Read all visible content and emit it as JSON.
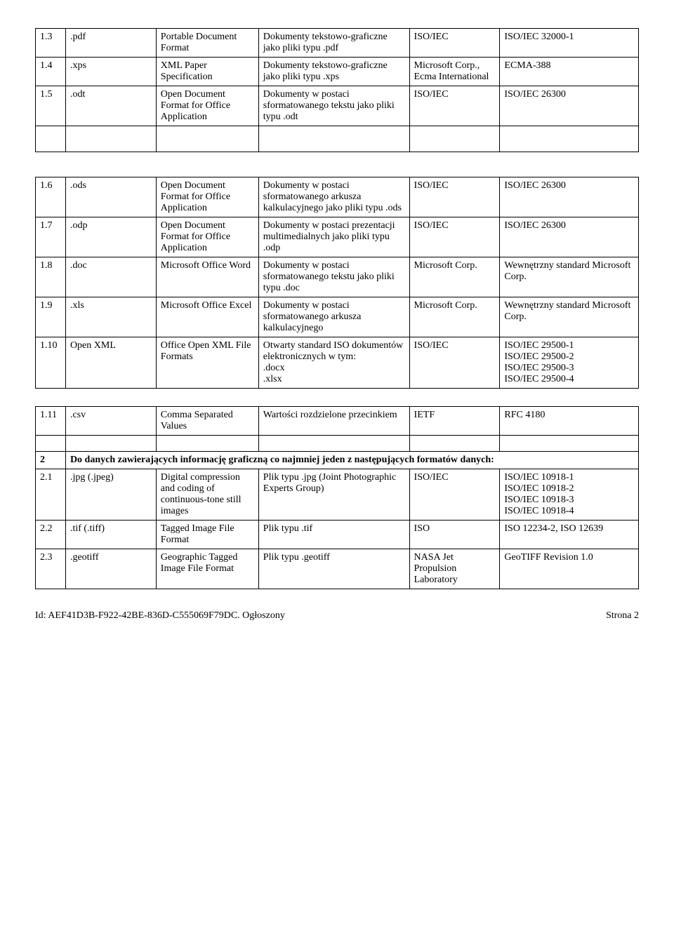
{
  "table1": {
    "rows": [
      {
        "n": "1.3",
        "ext": ".pdf",
        "name": "Portable Document Format",
        "desc": "Dokumenty tekstowo-graficzne jako pliki typu .pdf",
        "org": "ISO/IEC",
        "std": "ISO/IEC 32000-1"
      },
      {
        "n": "1.4",
        "ext": ".xps",
        "name": "XML Paper Specification",
        "desc": "Dokumenty tekstowo-graficzne jako pliki typu .xps",
        "org": "Microsoft Corp., Ecma International",
        "std": "ECMA-388"
      },
      {
        "n": "1.5",
        "ext": ".odt",
        "name": "Open Document Format for Office Application",
        "desc": "Dokumenty w postaci sformatowanego tekstu jako pliki typu .odt",
        "org": "ISO/IEC",
        "std": "ISO/IEC 26300"
      }
    ]
  },
  "table2": {
    "rows": [
      {
        "n": "1.6",
        "ext": ".ods",
        "name": "Open Document Format for Office Application",
        "desc": "Dokumenty w postaci sformatowanego arkusza kalkulacyjnego jako pliki typu .ods",
        "org": "ISO/IEC",
        "std": "ISO/IEC 26300"
      },
      {
        "n": "1.7",
        "ext": ".odp",
        "name": "Open Document Format for Office Application",
        "desc": "Dokumenty w postaci prezentacji multimedialnych jako pliki typu .odp",
        "org": "ISO/IEC",
        "std": "ISO/IEC 26300"
      },
      {
        "n": "1.8",
        "ext": ".doc",
        "name": "Microsoft Office Word",
        "desc": "Dokumenty w postaci sformatowanego tekstu jako pliki typu .doc",
        "org": "Microsoft Corp.",
        "std": "Wewnętrzny standard Microsoft Corp."
      },
      {
        "n": "1.9",
        "ext": ".xls",
        "name": "Microsoft Office Excel",
        "desc": "Dokumenty w postaci sformatowanego arkusza kalkulacyjnego",
        "org": "Microsoft Corp.",
        "std": "Wewnętrzny standard Microsoft Corp."
      },
      {
        "n": "1.10",
        "ext": "Open XML",
        "name": "Office Open XML File Formats",
        "desc": "Otwarty standard ISO dokumentów elektronicznych w tym:\n.docx\n.xlsx",
        "org": "ISO/IEC",
        "std": "ISO/IEC 29500-1\nISO/IEC 29500-2\nISO/IEC 29500-3\nISO/IEC 29500-4"
      }
    ]
  },
  "table3": {
    "rows": [
      {
        "n": "1.11",
        "ext": ".csv",
        "name": "Comma Separated Values",
        "desc": "Wartości rozdzielone przecinkiem",
        "org": "IETF",
        "std": "RFC 4180"
      }
    ]
  },
  "section2": {
    "header_n": "2",
    "header_text": "Do danych zawierających informację graficzną co najmniej jeden z następujących formatów danych:",
    "rows": [
      {
        "n": "2.1",
        "ext": ".jpg (.jpeg)",
        "name": "Digital compression and coding of continuous-tone still images",
        "desc": "Plik typu .jpg (Joint Photographic Experts Group)",
        "org": "ISO/IEC",
        "std": "ISO/IEC 10918-1\nISO/IEC 10918-2\nISO/IEC 10918-3\nISO/IEC 10918-4"
      },
      {
        "n": "2.2",
        "ext": ".tif (.tiff)",
        "name": "Tagged Image File Format",
        "desc": "Plik typu .tif",
        "org": "ISO",
        "std": "ISO 12234-2, ISO 12639"
      },
      {
        "n": "2.3",
        "ext": ".geotiff",
        "name": "Geographic Tagged Image File Format",
        "desc": "Plik typu .geotiff",
        "org": "NASA Jet Propulsion Laboratory",
        "std": "GeoTIFF Revision 1.0"
      }
    ]
  },
  "footer": {
    "left": "Id: AEF41D3B-F922-42BE-836D-C555069F79DC. Ogłoszony",
    "right": "Strona 2"
  }
}
